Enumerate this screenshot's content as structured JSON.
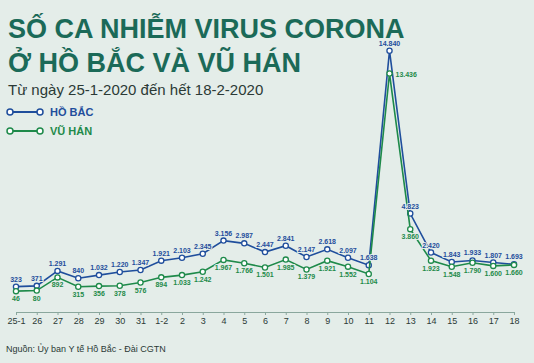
{
  "chart_data": {
    "type": "line",
    "title": [
      "SỐ CA NHIỄM VIRUS CORONA",
      "Ở HỒ BẮC VÀ VŨ HÁN"
    ],
    "subtitle": "Từ ngày 25-1-2020 đến hết 18-2-2020",
    "source": "Nguồn: Ủy ban Y tế Hồ Bắc - Đài CGTN",
    "categories": [
      "25-1",
      "26",
      "27",
      "28",
      "29",
      "30",
      "31",
      "1-2",
      "2",
      "3",
      "4",
      "5",
      "6",
      "7",
      "8",
      "9",
      "10",
      "11",
      "12",
      "13",
      "14",
      "15",
      "16",
      "17",
      "18"
    ],
    "series": [
      {
        "name": "HỒ BẮC",
        "color": "#1f4e9c",
        "values": [
          323,
          371,
          1291,
          840,
          1032,
          1220,
          1347,
          1921,
          2103,
          2345,
          3156,
          2987,
          2447,
          2841,
          2147,
          2618,
          2097,
          1638,
          14840,
          4823,
          2420,
          1843,
          1933,
          1807,
          1693
        ],
        "value_labels": [
          "323",
          "371",
          "1.291",
          "840",
          "1.032",
          "1.220",
          "1.347",
          "1.921",
          "2.103",
          "2.345",
          "3.156",
          "2.987",
          "2.447",
          "2.841",
          "2.147",
          "2.618",
          "2.097",
          "1.638",
          "14.840",
          "4.823",
          "2.420",
          "1.843",
          "1.933",
          "1.807",
          "1.693"
        ]
      },
      {
        "name": "VŨ HÁN",
        "color": "#1e8a4a",
        "values": [
          46,
          80,
          892,
          315,
          356,
          378,
          576,
          894,
          1033,
          1242,
          1967,
          1766,
          1501,
          1985,
          1379,
          1921,
          1552,
          1104,
          13436,
          3860,
          1923,
          1548,
          1790,
          1600,
          1660
        ],
        "value_labels": [
          "46",
          "80",
          "892",
          "315",
          "356",
          "378",
          "576",
          "894",
          "1.033",
          "1.242",
          "1.967",
          "1.766",
          "1.501",
          "1.985",
          "1.379",
          "1.921",
          "1.552",
          "1.104",
          "13.436",
          "3.860",
          "1.923",
          "1.548",
          "1.790",
          "1.600",
          "1.660"
        ]
      }
    ],
    "ylim": [
      -500,
      15500
    ],
    "legend": "upper left",
    "marker": "circle",
    "data_labels": true,
    "tick_labels": "x",
    "grid": false
  }
}
